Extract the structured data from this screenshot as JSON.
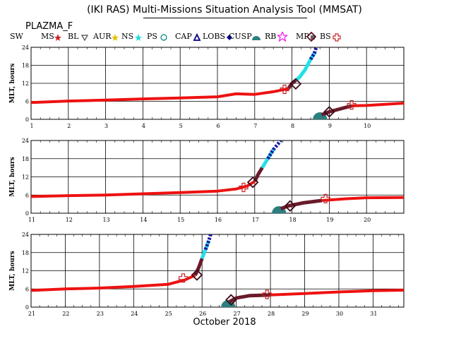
{
  "title": "(IKI RAS) Multi-Missions Situation Analysis Tool (MMSAT)",
  "satellite": "PLAZMA_F",
  "month_label": "October 2018",
  "legend": [
    {
      "label": "SW",
      "color": "#000000",
      "icon": "none"
    },
    {
      "label": "MS",
      "color": "#cc2222",
      "icon": "star-icon"
    },
    {
      "label": "BL",
      "color": "#444444",
      "icon": "triangle-down-icon"
    },
    {
      "label": "AUR",
      "color": "#e8c000",
      "icon": "star-icon"
    },
    {
      "label": "NS",
      "color": "#22dddd",
      "icon": "star-icon"
    },
    {
      "label": "PS",
      "color": "#008080",
      "icon": "circle-icon"
    },
    {
      "label": "CAP",
      "color": "#000080",
      "icon": "triangle-up-icon"
    },
    {
      "label": "LOBS",
      "color": "#0000aa",
      "icon": "diamond-icon"
    },
    {
      "label": "CUSP",
      "color": "#2a7f7f",
      "icon": "half-circle-icon"
    },
    {
      "label": "RB",
      "color": "#ee22ee",
      "icon": "star-outline-icon"
    },
    {
      "label": "MP",
      "color": "#666666",
      "icon": "square-icon"
    },
    {
      "label": "BS",
      "color": "#cc2222",
      "icon": "plus-outline-icon"
    }
  ],
  "chart_data": [
    {
      "type": "line",
      "ylabel": "MLT, hours",
      "x_days": [
        1,
        2,
        3,
        4,
        5,
        6,
        7,
        8,
        9,
        10
      ],
      "xlim": [
        1,
        11
      ],
      "ylim": [
        0,
        24
      ],
      "yticks": [
        0,
        6,
        12,
        18,
        24
      ],
      "sw_mlt": [
        [
          1.0,
          5.6
        ],
        [
          2.0,
          6.1
        ],
        [
          3.0,
          6.4
        ],
        [
          4.0,
          6.8
        ],
        [
          5.0,
          7.1
        ],
        [
          6.0,
          7.5
        ],
        [
          6.5,
          8.5
        ],
        [
          7.0,
          8.3
        ],
        [
          7.5,
          9.2
        ],
        [
          7.9,
          10.2
        ]
      ],
      "outbound_track": [
        [
          7.9,
          10.2
        ],
        [
          8.0,
          12.0
        ],
        [
          8.1,
          13.0
        ],
        [
          8.2,
          14.0
        ],
        [
          8.35,
          16.5
        ],
        [
          8.5,
          20.0
        ],
        [
          8.6,
          22.0
        ],
        [
          8.65,
          24.0
        ]
      ],
      "inbound_track": [
        [
          8.6,
          0.0
        ],
        [
          8.8,
          1.5
        ],
        [
          9.0,
          2.5
        ],
        [
          9.3,
          3.5
        ],
        [
          9.6,
          4.5
        ]
      ],
      "sw_mlt_late": [
        [
          9.6,
          4.5
        ],
        [
          10.0,
          4.6
        ],
        [
          10.5,
          5.0
        ],
        [
          11.0,
          5.4
        ]
      ],
      "bs_crossings": [
        [
          7.8,
          10.0
        ],
        [
          9.6,
          4.8
        ]
      ],
      "mp_crossings": [
        [
          8.1,
          11.8
        ],
        [
          9.0,
          2.5
        ]
      ]
    },
    {
      "type": "line",
      "ylabel": "MLT, hours",
      "x_days": [
        11,
        12,
        13,
        14,
        15,
        16,
        17,
        18,
        19,
        20
      ],
      "xlim": [
        11,
        21
      ],
      "ylim": [
        0,
        24
      ],
      "yticks": [
        0,
        6,
        12,
        18,
        24
      ],
      "sw_mlt": [
        [
          11.0,
          5.5
        ],
        [
          12.0,
          5.8
        ],
        [
          13.0,
          6.0
        ],
        [
          14.0,
          6.4
        ],
        [
          15.0,
          6.8
        ],
        [
          16.0,
          7.3
        ],
        [
          16.5,
          8.0
        ],
        [
          16.8,
          9.0
        ],
        [
          17.0,
          10.5
        ]
      ],
      "outbound_track": [
        [
          17.0,
          10.5
        ],
        [
          17.1,
          13.0
        ],
        [
          17.2,
          15.0
        ],
        [
          17.35,
          18.0
        ],
        [
          17.5,
          21.0
        ],
        [
          17.7,
          24.0
        ]
      ],
      "inbound_track": [
        [
          17.5,
          0.0
        ],
        [
          17.7,
          1.5
        ],
        [
          17.9,
          2.4
        ],
        [
          18.3,
          3.4
        ],
        [
          18.8,
          4.2
        ]
      ],
      "sw_mlt_late": [
        [
          18.8,
          4.2
        ],
        [
          19.5,
          4.8
        ],
        [
          20.0,
          5.1
        ],
        [
          21.0,
          5.2
        ]
      ],
      "bs_crossings": [
        [
          16.7,
          8.5
        ],
        [
          18.9,
          4.8
        ]
      ],
      "mp_crossings": [
        [
          16.95,
          10.2
        ],
        [
          17.95,
          2.4
        ]
      ]
    },
    {
      "type": "line",
      "ylabel": "MLT, hours",
      "x_days": [
        21,
        22,
        23,
        24,
        25,
        26,
        27,
        28,
        29,
        30,
        31
      ],
      "xlim": [
        21,
        31.9
      ],
      "ylim": [
        0,
        24
      ],
      "yticks": [
        0,
        6,
        12,
        18,
        24
      ],
      "sw_mlt": [
        [
          21.0,
          5.5
        ],
        [
          22.0,
          6.0
        ],
        [
          23.0,
          6.3
        ],
        [
          24.0,
          6.8
        ],
        [
          25.0,
          7.5
        ],
        [
          25.5,
          9.0
        ],
        [
          25.8,
          10.5
        ]
      ],
      "outbound_track": [
        [
          25.8,
          10.5
        ],
        [
          25.9,
          13.0
        ],
        [
          26.0,
          16.0
        ],
        [
          26.1,
          19.0
        ],
        [
          26.2,
          22.0
        ],
        [
          26.25,
          24.0
        ]
      ],
      "inbound_track": [
        [
          26.6,
          0.0
        ],
        [
          26.8,
          1.8
        ],
        [
          27.0,
          3.0
        ],
        [
          27.4,
          3.8
        ],
        [
          28.0,
          4.0
        ]
      ],
      "sw_mlt_late": [
        [
          28.0,
          4.0
        ],
        [
          29.0,
          4.5
        ],
        [
          30.0,
          5.0
        ],
        [
          31.0,
          5.4
        ],
        [
          31.9,
          5.6
        ]
      ],
      "bs_crossings": [
        [
          25.45,
          9.6
        ],
        [
          27.9,
          4.2
        ]
      ],
      "mp_crossings": [
        [
          25.85,
          10.6
        ],
        [
          26.85,
          2.4
        ]
      ]
    }
  ]
}
